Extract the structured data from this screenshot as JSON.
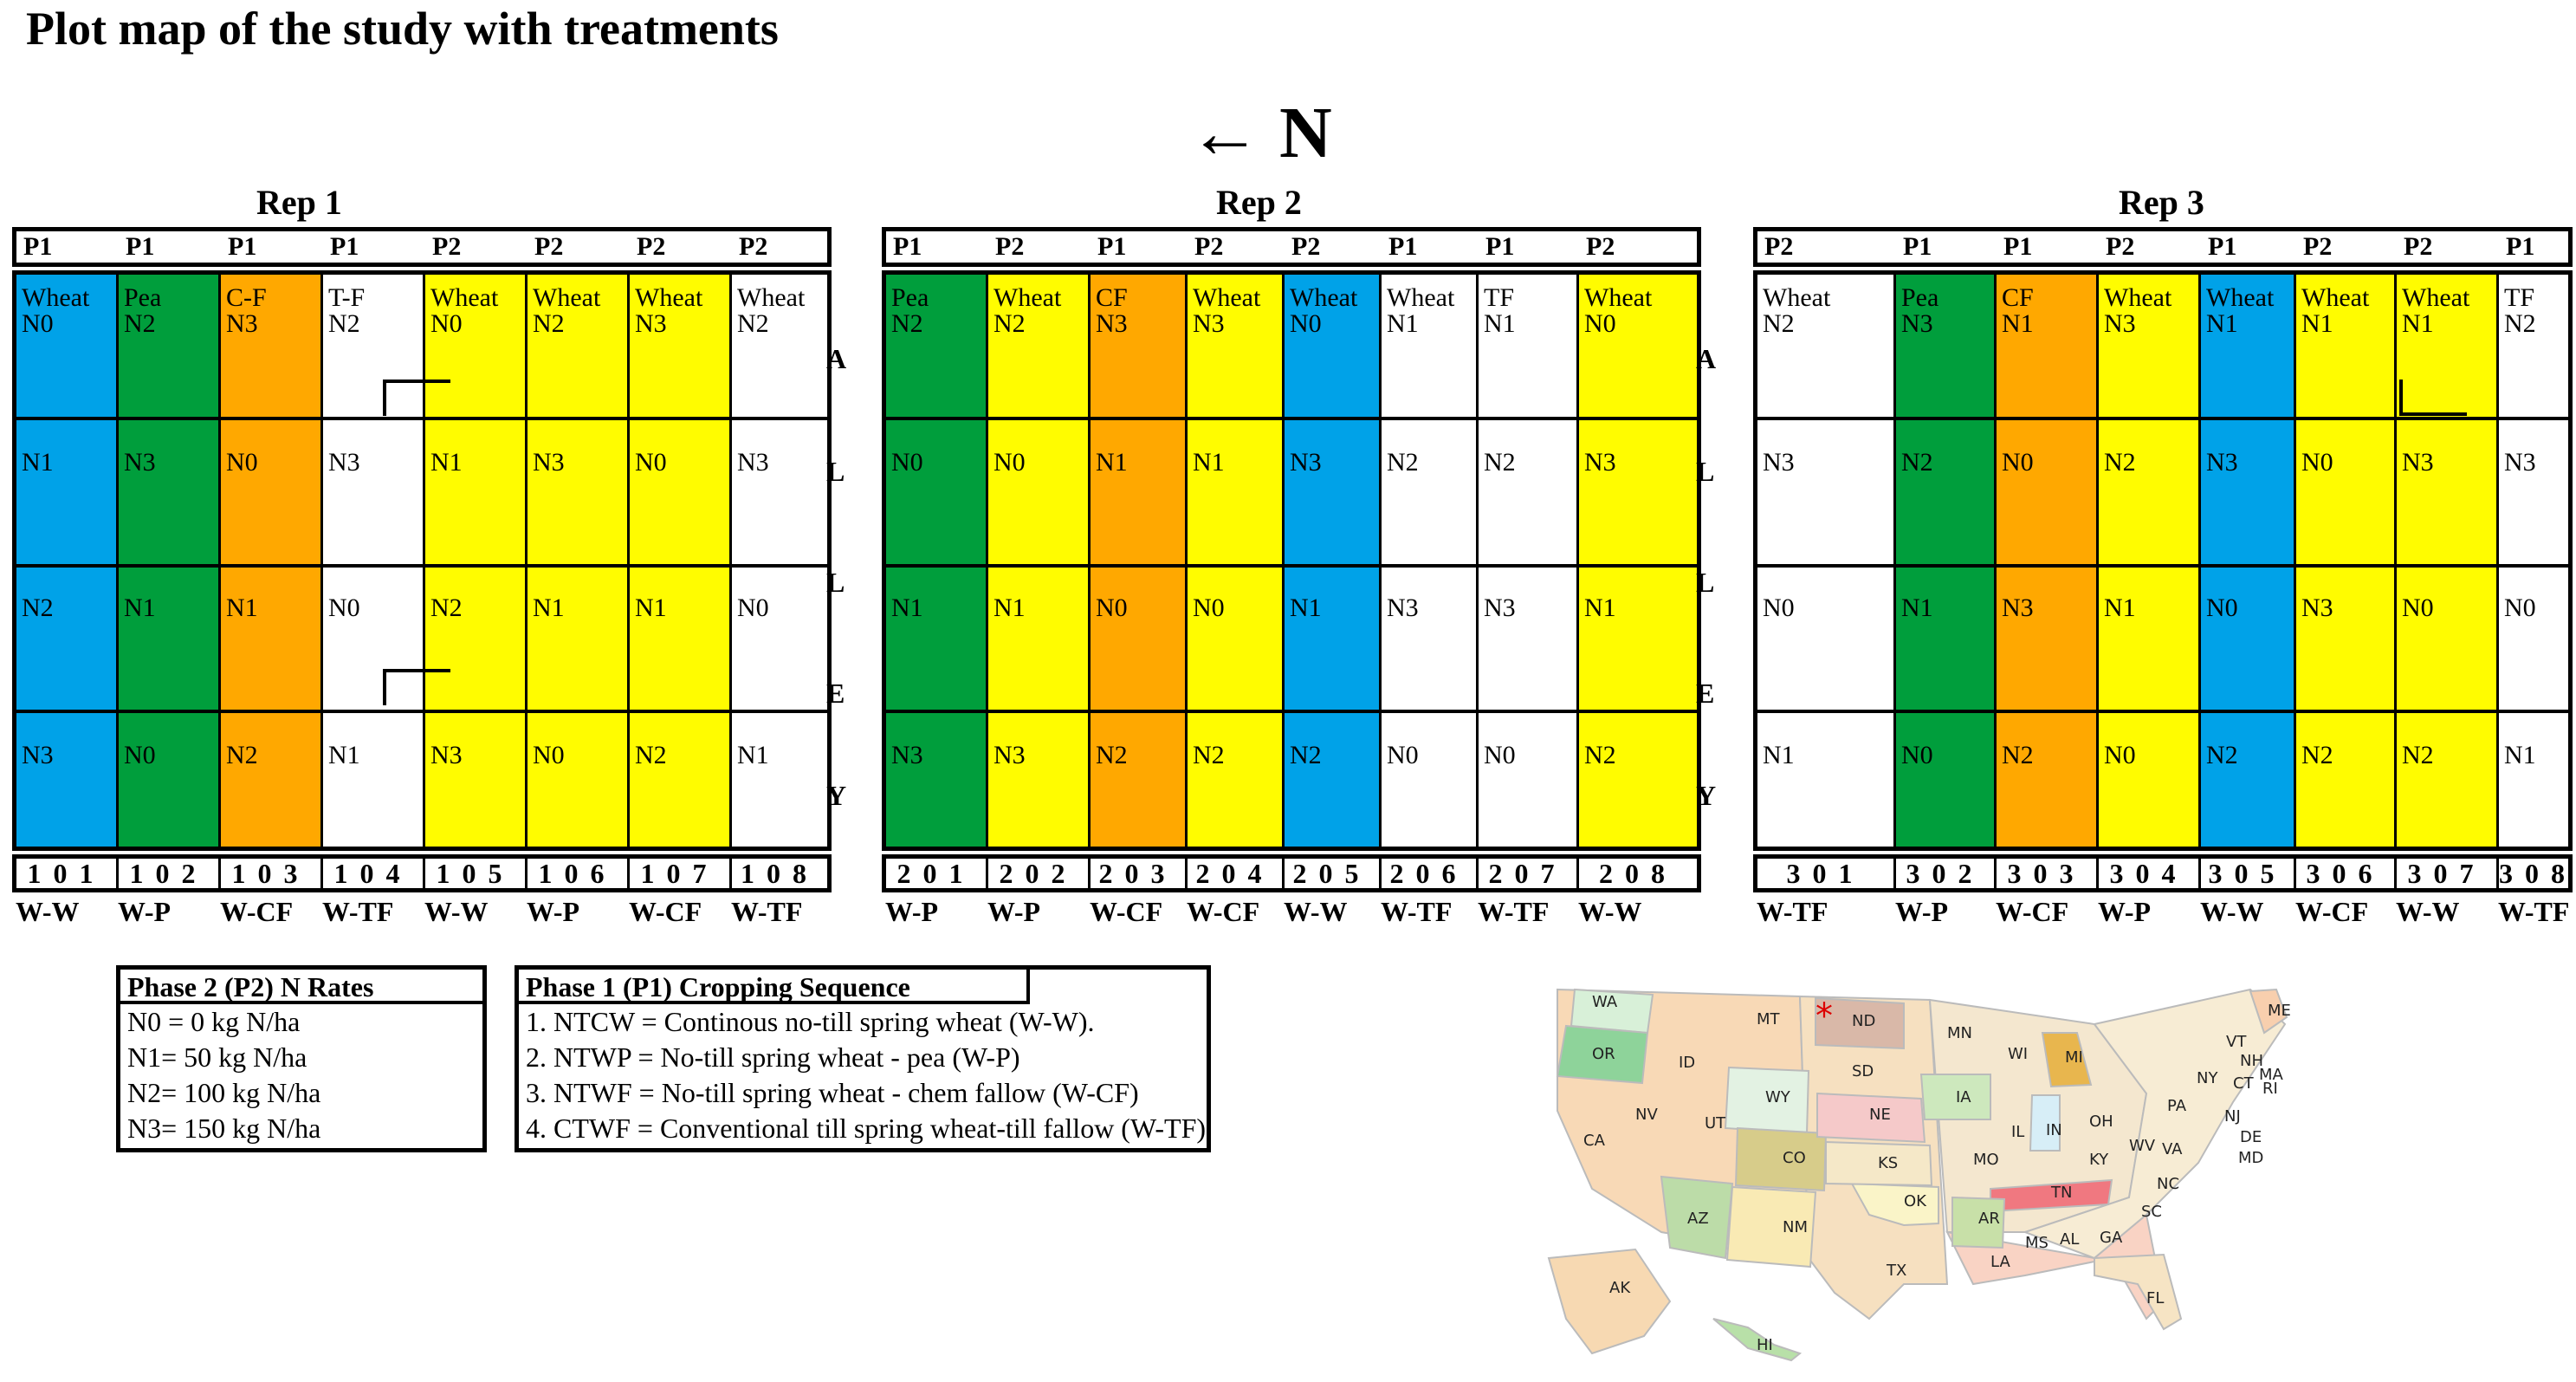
{
  "title": "Plot map of the study with treatments",
  "north_label": "← N",
  "alley_letters": [
    "A",
    "L",
    "L",
    "E",
    "Y"
  ],
  "colors": {
    "Wheat": "#fffc00",
    "Pea": "#009e3c",
    "CF": "#ffa800",
    "Blue": "#00a2e8",
    "White": "#ffffff"
  },
  "reps": [
    {
      "name": "Rep 1",
      "plots": [
        {
          "phase": "P1",
          "crop": "Wheat",
          "n": [
            "N0",
            "N1",
            "N2",
            "N3"
          ],
          "color": "Blue",
          "num": "101",
          "seq": "W-W"
        },
        {
          "phase": "P1",
          "crop": "Pea",
          "n": [
            "N2",
            "N3",
            "N1",
            "N0"
          ],
          "color": "Pea",
          "num": "102",
          "seq": "W-P"
        },
        {
          "phase": "P1",
          "crop": "C-F",
          "n": [
            "N3",
            "N0",
            "N1",
            "N2"
          ],
          "color": "CF",
          "num": "103",
          "seq": "W-CF"
        },
        {
          "phase": "P1",
          "crop": "T-F",
          "n": [
            "N2",
            "N3",
            "N0",
            "N1"
          ],
          "color": "White",
          "num": "104",
          "seq": "W-TF"
        },
        {
          "phase": "P2",
          "crop": "Wheat",
          "n": [
            "N0",
            "N1",
            "N2",
            "N3"
          ],
          "color": "Wheat",
          "num": "105",
          "seq": "W-W"
        },
        {
          "phase": "P2",
          "crop": "Wheat",
          "n": [
            "N2",
            "N3",
            "N1",
            "N0"
          ],
          "color": "Wheat",
          "num": "106",
          "seq": "W-P"
        },
        {
          "phase": "P2",
          "crop": "Wheat",
          "n": [
            "N3",
            "N0",
            "N1",
            "N2"
          ],
          "color": "Wheat",
          "num": "107",
          "seq": "W-CF"
        },
        {
          "phase": "P2",
          "crop": "Wheat",
          "n": [
            "N2",
            "N3",
            "N0",
            "N1"
          ],
          "color": "White",
          "num": "108",
          "seq": "W-TF"
        }
      ]
    },
    {
      "name": "Rep 2",
      "plots": [
        {
          "phase": "P1",
          "crop": "Pea",
          "n": [
            "N2",
            "N0",
            "N1",
            "N3"
          ],
          "color": "Pea",
          "num": "201",
          "seq": "W-P"
        },
        {
          "phase": "P2",
          "crop": "Wheat",
          "n": [
            "N2",
            "N0",
            "N1",
            "N3"
          ],
          "color": "Wheat",
          "num": "202",
          "seq": "W-P"
        },
        {
          "phase": "P1",
          "crop": "CF",
          "n": [
            "N3",
            "N1",
            "N0",
            "N2"
          ],
          "color": "CF",
          "num": "203",
          "seq": "W-CF"
        },
        {
          "phase": "P2",
          "crop": "Wheat",
          "n": [
            "N3",
            "N1",
            "N0",
            "N2"
          ],
          "color": "Wheat",
          "num": "204",
          "seq": "W-CF"
        },
        {
          "phase": "P2",
          "crop": "Wheat",
          "n": [
            "N0",
            "N3",
            "N1",
            "N2"
          ],
          "color": "Blue",
          "num": "205",
          "seq": "W-W"
        },
        {
          "phase": "P1",
          "crop": "Wheat",
          "n": [
            "N1",
            "N2",
            "N3",
            "N0"
          ],
          "color": "White",
          "num": "206",
          "seq": "W-TF"
        },
        {
          "phase": "P1",
          "crop": "TF",
          "n": [
            "N1",
            "N2",
            "N3",
            "N0"
          ],
          "color": "White",
          "num": "207",
          "seq": "W-TF"
        },
        {
          "phase": "P2",
          "crop": "Wheat",
          "n": [
            "N0",
            "N3",
            "N1",
            "N2"
          ],
          "color": "Wheat",
          "num": "208",
          "seq": "W-W"
        }
      ]
    },
    {
      "name": "Rep 3",
      "plots": [
        {
          "phase": "P2",
          "crop": "Wheat",
          "n": [
            "N2",
            "N3",
            "N0",
            "N1"
          ],
          "color": "White",
          "num": "301",
          "seq": "W-TF"
        },
        {
          "phase": "P1",
          "crop": "Pea",
          "n": [
            "N3",
            "N2",
            "N1",
            "N0"
          ],
          "color": "Pea",
          "num": "302",
          "seq": "W-P"
        },
        {
          "phase": "P1",
          "crop": "CF",
          "n": [
            "N1",
            "N0",
            "N3",
            "N2"
          ],
          "color": "CF",
          "num": "303",
          "seq": "W-CF"
        },
        {
          "phase": "P2",
          "crop": "Wheat",
          "n": [
            "N3",
            "N2",
            "N1",
            "N0"
          ],
          "color": "Wheat",
          "num": "304",
          "seq": "W-P"
        },
        {
          "phase": "P1",
          "crop": "Wheat",
          "n": [
            "N1",
            "N3",
            "N0",
            "N2"
          ],
          "color": "Blue",
          "num": "305",
          "seq": "W-W"
        },
        {
          "phase": "P2",
          "crop": "Wheat",
          "n": [
            "N1",
            "N0",
            "N3",
            "N2"
          ],
          "color": "Wheat",
          "num": "306",
          "seq": "W-CF"
        },
        {
          "phase": "P2",
          "crop": "Wheat",
          "n": [
            "N1",
            "N3",
            "N0",
            "N2"
          ],
          "color": "Wheat",
          "num": "307",
          "seq": "W-W"
        },
        {
          "phase": "P1",
          "crop": "TF",
          "n": [
            "N2",
            "N3",
            "N0",
            "N1"
          ],
          "color": "White",
          "num": "308",
          "seq": "W-TF"
        }
      ]
    }
  ],
  "legend_n_rates": {
    "header": "Phase 2 (P2) N Rates",
    "lines": [
      "N0 = 0 kg N/ha",
      "N1= 50 kg N/ha",
      "N2= 100 kg N/ha",
      "N3= 150 kg N/ha"
    ]
  },
  "legend_cropping": {
    "header": "Phase 1 (P1) Cropping Sequence",
    "lines": [
      "1. NTCW = Continous no-till spring wheat (W-W).",
      "2. NTWP = No-till spring wheat - pea (W-P)",
      "3. NTWF = No-till spring wheat -  chem fallow (W-CF)",
      "4. CTWF = Conventional till spring wheat-till fallow (W-TF)"
    ]
  },
  "map_states": [
    "WA",
    "OR",
    "CA",
    "ID",
    "NV",
    "MT",
    "WY",
    "UT",
    "AZ",
    "CO",
    "NM",
    "ND",
    "SD",
    "NE",
    "KS",
    "OK",
    "TX",
    "MN",
    "IA",
    "MO",
    "AR",
    "LA",
    "WI",
    "IL",
    "MI",
    "IN",
    "OH",
    "KY",
    "TN",
    "MS",
    "AL",
    "GA",
    "FL",
    "SC",
    "NC",
    "VA",
    "WV",
    "PA",
    "NY",
    "VT",
    "NH",
    "ME",
    "MA",
    "CT",
    "RI",
    "NJ",
    "DE",
    "MD",
    "AK",
    "HI"
  ],
  "map_marker": "*"
}
